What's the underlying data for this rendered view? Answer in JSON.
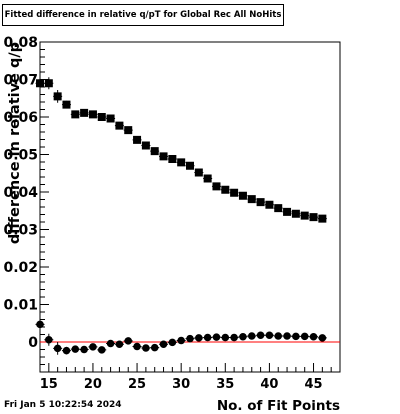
{
  "title": "Fitted difference in relative q/pT for Global Rec All NoHits",
  "timestamp": "Fri Jan  5 10:22:54 2024",
  "chart_data": {
    "type": "scatter",
    "title": "Fitted difference in relative q/pT for Global Rec All NoHits",
    "xlabel": "No. of Fit Points",
    "ylabel": "difference in relative q/p",
    "xlim": [
      14,
      48
    ],
    "ylim": [
      -0.008,
      0.08
    ],
    "x_ticks": [
      15,
      20,
      25,
      30,
      35,
      40,
      45
    ],
    "x_tick_labels": [
      "15",
      "20",
      "25",
      "30",
      "35",
      "40",
      "45"
    ],
    "y_ticks": [
      0,
      0.01,
      0.02,
      0.03,
      0.04,
      0.05,
      0.06,
      0.07,
      0.08
    ],
    "y_tick_labels": [
      "0",
      "0.01",
      "0.02",
      "0.03",
      "0.04",
      "0.05",
      "0.06",
      "0.07",
      "0.08"
    ],
    "zero_line_color": "#ff0000",
    "series": [
      {
        "marker": "square",
        "x": [
          14,
          15,
          16,
          17,
          18,
          19,
          20,
          21,
          22,
          23,
          24,
          25,
          26,
          27,
          28,
          29,
          30,
          31,
          32,
          33,
          34,
          35,
          36,
          37,
          38,
          39,
          40,
          41,
          42,
          43,
          44,
          45,
          46
        ],
        "y": [
          0.069,
          0.069,
          0.0655,
          0.0633,
          0.0607,
          0.0611,
          0.0607,
          0.06,
          0.0596,
          0.0577,
          0.0565,
          0.0539,
          0.0524,
          0.0509,
          0.0495,
          0.0488,
          0.0479,
          0.047,
          0.0452,
          0.0436,
          0.0415,
          0.0406,
          0.0398,
          0.039,
          0.0381,
          0.0373,
          0.0366,
          0.0357,
          0.0347,
          0.0342,
          0.0337,
          0.0333,
          0.0329
        ],
        "err": [
          0.0016,
          0.0016,
          0.0017,
          0.001,
          0.0009,
          0.0004,
          0.0004,
          0.0004,
          0.0004,
          0.0004,
          0.0004,
          0.0004,
          0.0003,
          0.0003,
          0.0003,
          0.0003,
          0.0003,
          0.0003,
          0.0003,
          0.0003,
          0.0003,
          0.0003,
          0.0003,
          0.0003,
          0.0003,
          0.0003,
          0.0003,
          0.0003,
          0.0003,
          0.0003,
          0.0003,
          0.0003,
          0.0003
        ]
      },
      {
        "marker": "circle",
        "x": [
          14,
          15,
          16,
          17,
          18,
          19,
          20,
          21,
          22,
          23,
          24,
          25,
          26,
          27,
          28,
          29,
          30,
          31,
          32,
          33,
          34,
          35,
          36,
          37,
          38,
          39,
          40,
          41,
          42,
          43,
          44,
          45,
          46
        ],
        "y": [
          0.0047,
          0.0006,
          -0.0017,
          -0.0023,
          -0.0019,
          -0.002,
          -0.0013,
          -0.0021,
          -0.0004,
          -0.0006,
          0.0003,
          -0.0012,
          -0.0016,
          -0.0015,
          -0.0006,
          -0.0001,
          0.0004,
          0.0009,
          0.0011,
          0.0012,
          0.0013,
          0.0012,
          0.0012,
          0.0014,
          0.0016,
          0.0018,
          0.0018,
          0.0016,
          0.0016,
          0.0015,
          0.0015,
          0.0014,
          0.0011
        ],
        "err": [
          0.0016,
          0.0016,
          0.0017,
          0.001,
          0.0009,
          0.0004,
          0.0004,
          0.0004,
          0.0004,
          0.0004,
          0.0004,
          0.0004,
          0.0003,
          0.0003,
          0.0003,
          0.0003,
          0.0003,
          0.0003,
          0.0003,
          0.0003,
          0.0003,
          0.0003,
          0.0003,
          0.0003,
          0.0003,
          0.0003,
          0.0003,
          0.0003,
          0.0003,
          0.0003,
          0.0003,
          0.0003,
          0.0003
        ]
      }
    ]
  }
}
